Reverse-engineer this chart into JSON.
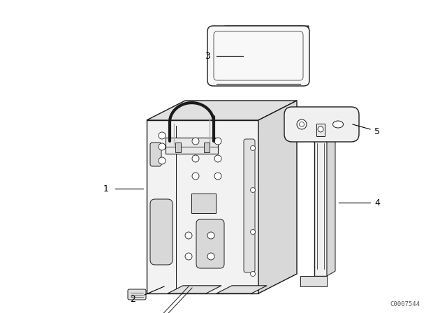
{
  "bg_color": "#ffffff",
  "line_color": "#1a1a1a",
  "label_color": "#000000",
  "watermark": "C0007544",
  "figsize": [
    6.4,
    4.48
  ],
  "dpi": 100
}
